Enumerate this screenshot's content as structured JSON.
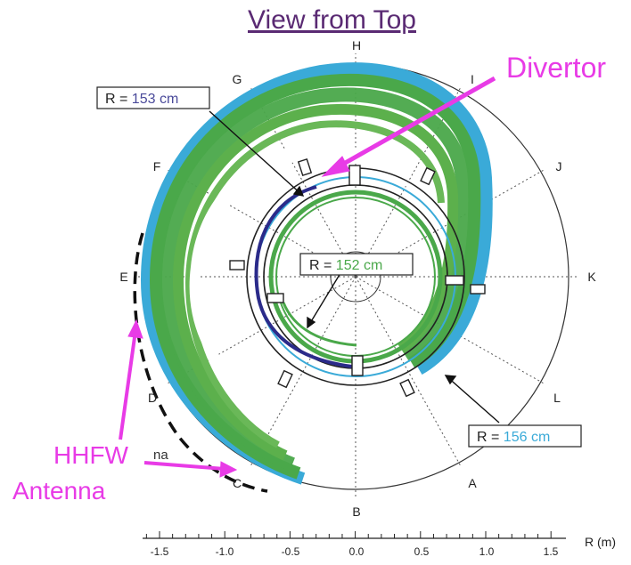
{
  "title": "View from Top",
  "labels": {
    "divertor": "Divertor",
    "hhfw_line1": "HHFW",
    "hhfw_line2": "Antenna",
    "antenna_fragment": "na"
  },
  "radius_boxes": {
    "r153": {
      "prefix": "R = ",
      "value": "153 cm",
      "color": "#4a4a9a"
    },
    "r152": {
      "prefix": "R = ",
      "value": "152 cm",
      "color": "#4aa84a"
    },
    "r156": {
      "prefix": "R = ",
      "value": "156 cm",
      "color": "#3aaad8"
    }
  },
  "sector_letters": [
    "A",
    "B",
    "C",
    "D",
    "E",
    "F",
    "G",
    "H",
    "I",
    "J",
    "K",
    "L"
  ],
  "axis": {
    "ticks": [
      "-1.5",
      "-1.0",
      "-0.5",
      "0.0",
      "0.5",
      "1.0",
      "1.5"
    ],
    "label": "R (m)"
  },
  "colors": {
    "title": "#5a2a73",
    "annotation": "#e83be6",
    "field_green": "#4aa84a",
    "field_blue": "#3aaad8",
    "field_navy": "#2b2b8a"
  }
}
